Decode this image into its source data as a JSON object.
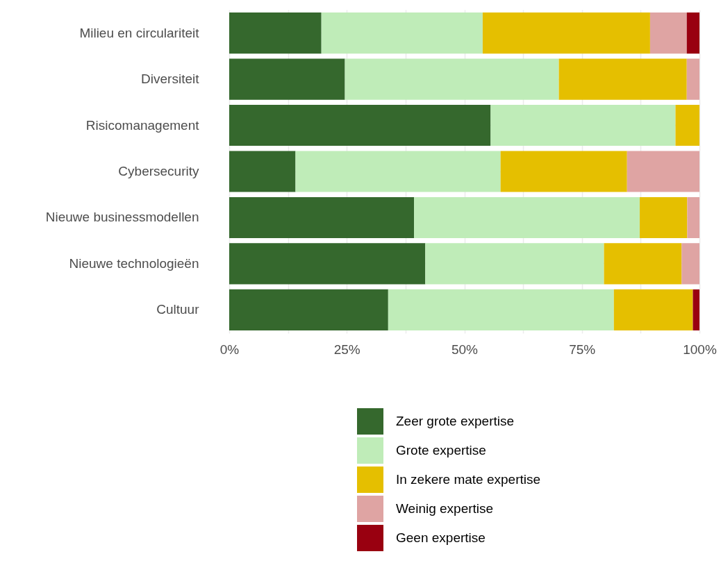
{
  "chart_data": {
    "type": "bar",
    "orientation": "horizontal",
    "stacked": true,
    "categories": [
      "Milieu en circulariteit",
      "Diversiteit",
      "Risicomanagement",
      "Cybersecurity",
      "Nieuwe businessmodellen",
      "Nieuwe technologieën",
      "Cultuur"
    ],
    "series": [
      {
        "name": "Zeer grote expertise",
        "color": "#35682d",
        "values": [
          19.6,
          24.6,
          55.6,
          14.1,
          39.3,
          41.7,
          33.8
        ]
      },
      {
        "name": "Grote expertise",
        "color": "#bfecb8",
        "values": [
          34.3,
          45.5,
          39.3,
          43.6,
          48.0,
          38.0,
          48.0
        ]
      },
      {
        "name": "In zekere mate expertise",
        "color": "#e5bf00",
        "values": [
          35.6,
          27.2,
          5.1,
          26.9,
          10.1,
          16.5,
          16.8
        ]
      },
      {
        "name": "Weinig expertise",
        "color": "#dfa4a3",
        "values": [
          7.8,
          2.7,
          null,
          15.4,
          2.6,
          3.8,
          null
        ]
      },
      {
        "name": "Geen expertise",
        "color": "#990010",
        "values": [
          2.7,
          null,
          null,
          null,
          null,
          null,
          1.4
        ]
      }
    ],
    "xlim": [
      0,
      100
    ],
    "xticks": [
      {
        "value": 0,
        "label": "0%"
      },
      {
        "value": 12.5,
        "label": null
      },
      {
        "value": 25,
        "label": "25%"
      },
      {
        "value": 37.5,
        "label": null
      },
      {
        "value": 50,
        "label": "50%"
      },
      {
        "value": 62.5,
        "label": null
      },
      {
        "value": 75,
        "label": "75%"
      },
      {
        "value": 87.5,
        "label": null
      },
      {
        "value": 100,
        "label": "100%"
      }
    ],
    "grid": true,
    "legend": "bottom"
  }
}
